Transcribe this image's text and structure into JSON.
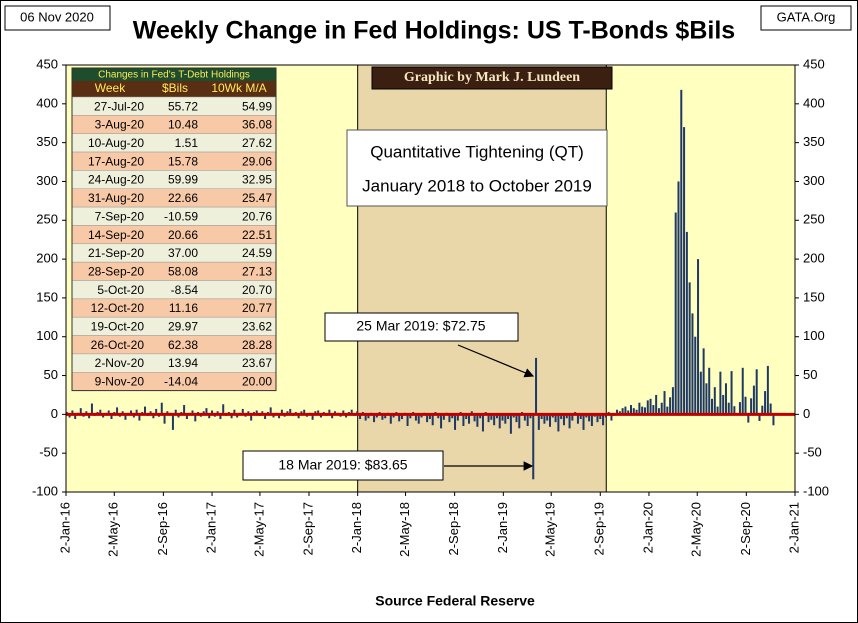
{
  "chart_data": {
    "type": "bar",
    "title": "Weekly Change in Fed Holdings:  US T-Bonds $Bils",
    "date_label": "06 Nov 2020",
    "source_tag": "GATA.Org",
    "credit": "Graphic by Mark J. Lundeen",
    "xlabel": "Source Federal Reserve",
    "color": "#1f3864",
    "background": "#ffffc0",
    "zero_line_color": "#c00000",
    "shaded": {
      "range": [
        "2018-01-02",
        "2019-09-17"
      ],
      "color": "#e9d6a9",
      "text": [
        "Quantitative Tightening (QT)",
        "January 2018 to October 2019"
      ]
    },
    "annotations": [
      "25 Mar 2019: $72.75",
      "18 Mar 2019: $83.65"
    ],
    "xlim": [
      "2016-01-02",
      "2021-01-02"
    ],
    "xticks": [
      {
        "value": "2016-01-02",
        "label": "2-Jan-16"
      },
      {
        "value": "2016-05-02",
        "label": "2-May-16"
      },
      {
        "value": "2016-09-02",
        "label": "2-Sep-16"
      },
      {
        "value": "2017-01-02",
        "label": "2-Jan-17"
      },
      {
        "value": "2017-05-02",
        "label": "2-May-17"
      },
      {
        "value": "2017-09-02",
        "label": "2-Sep-17"
      },
      {
        "value": "2018-01-02",
        "label": "2-Jan-18"
      },
      {
        "value": "2018-05-02",
        "label": "2-May-18"
      },
      {
        "value": "2018-09-02",
        "label": "2-Sep-18"
      },
      {
        "value": "2019-01-02",
        "label": "2-Jan-19"
      },
      {
        "value": "2019-05-02",
        "label": "2-May-19"
      },
      {
        "value": "2019-09-02",
        "label": "2-Sep-19"
      },
      {
        "value": "2020-01-02",
        "label": "2-Jan-20"
      },
      {
        "value": "2020-05-02",
        "label": "2-May-20"
      },
      {
        "value": "2020-09-02",
        "label": "2-Sep-20"
      },
      {
        "value": "2021-01-02",
        "label": "2-Jan-21"
      }
    ],
    "ylim": [
      -100,
      450
    ],
    "yticks": [
      -100,
      -50,
      0,
      50,
      100,
      150,
      200,
      250,
      300,
      350,
      400,
      450
    ],
    "x": [
      "2016-01-04",
      "2016-01-11",
      "2016-01-18",
      "2016-01-25",
      "2016-02-01",
      "2016-02-08",
      "2016-02-15",
      "2016-02-22",
      "2016-02-29",
      "2016-03-07",
      "2016-03-14",
      "2016-03-21",
      "2016-03-28",
      "2016-04-04",
      "2016-04-11",
      "2016-04-18",
      "2016-04-25",
      "2016-05-02",
      "2016-05-09",
      "2016-05-16",
      "2016-05-23",
      "2016-05-30",
      "2016-06-06",
      "2016-06-13",
      "2016-06-20",
      "2016-06-27",
      "2016-07-04",
      "2016-07-11",
      "2016-07-18",
      "2016-07-25",
      "2016-08-01",
      "2016-08-08",
      "2016-08-15",
      "2016-08-22",
      "2016-08-29",
      "2016-09-05",
      "2016-09-12",
      "2016-09-19",
      "2016-09-26",
      "2016-10-03",
      "2016-10-10",
      "2016-10-17",
      "2016-10-24",
      "2016-10-31",
      "2016-11-07",
      "2016-11-14",
      "2016-11-21",
      "2016-11-28",
      "2016-12-05",
      "2016-12-12",
      "2016-12-19",
      "2016-12-26",
      "2017-01-02",
      "2017-01-09",
      "2017-01-16",
      "2017-01-23",
      "2017-01-30",
      "2017-02-06",
      "2017-02-13",
      "2017-02-20",
      "2017-02-27",
      "2017-03-06",
      "2017-03-13",
      "2017-03-20",
      "2017-03-27",
      "2017-04-03",
      "2017-04-10",
      "2017-04-17",
      "2017-04-24",
      "2017-05-01",
      "2017-05-08",
      "2017-05-15",
      "2017-05-22",
      "2017-05-29",
      "2017-06-05",
      "2017-06-12",
      "2017-06-19",
      "2017-06-26",
      "2017-07-03",
      "2017-07-10",
      "2017-07-17",
      "2017-07-24",
      "2017-07-31",
      "2017-08-07",
      "2017-08-14",
      "2017-08-21",
      "2017-08-28",
      "2017-09-04",
      "2017-09-11",
      "2017-09-18",
      "2017-09-25",
      "2017-10-02",
      "2017-10-09",
      "2017-10-16",
      "2017-10-23",
      "2017-10-30",
      "2017-11-06",
      "2017-11-13",
      "2017-11-20",
      "2017-11-27",
      "2017-12-04",
      "2017-12-11",
      "2017-12-18",
      "2017-12-25",
      "2018-01-01",
      "2018-01-08",
      "2018-01-15",
      "2018-01-22",
      "2018-01-29",
      "2018-02-05",
      "2018-02-12",
      "2018-02-19",
      "2018-02-26",
      "2018-03-05",
      "2018-03-12",
      "2018-03-19",
      "2018-03-26",
      "2018-04-02",
      "2018-04-09",
      "2018-04-16",
      "2018-04-23",
      "2018-04-30",
      "2018-05-07",
      "2018-05-14",
      "2018-05-21",
      "2018-05-28",
      "2018-06-04",
      "2018-06-11",
      "2018-06-18",
      "2018-06-25",
      "2018-07-02",
      "2018-07-09",
      "2018-07-16",
      "2018-07-23",
      "2018-07-30",
      "2018-08-06",
      "2018-08-13",
      "2018-08-20",
      "2018-08-27",
      "2018-09-03",
      "2018-09-10",
      "2018-09-17",
      "2018-09-24",
      "2018-10-01",
      "2018-10-08",
      "2018-10-15",
      "2018-10-22",
      "2018-10-29",
      "2018-11-05",
      "2018-11-12",
      "2018-11-19",
      "2018-11-26",
      "2018-12-03",
      "2018-12-10",
      "2018-12-17",
      "2018-12-24",
      "2018-12-31",
      "2019-01-07",
      "2019-01-14",
      "2019-01-21",
      "2019-01-28",
      "2019-02-04",
      "2019-02-11",
      "2019-02-18",
      "2019-02-25",
      "2019-03-04",
      "2019-03-11",
      "2019-03-18",
      "2019-03-25",
      "2019-04-01",
      "2019-04-08",
      "2019-04-15",
      "2019-04-22",
      "2019-04-29",
      "2019-05-06",
      "2019-05-13",
      "2019-05-20",
      "2019-05-27",
      "2019-06-03",
      "2019-06-10",
      "2019-06-17",
      "2019-06-24",
      "2019-07-01",
      "2019-07-08",
      "2019-07-15",
      "2019-07-22",
      "2019-07-29",
      "2019-08-05",
      "2019-08-12",
      "2019-08-19",
      "2019-08-26",
      "2019-09-02",
      "2019-09-09",
      "2019-09-16",
      "2019-09-23",
      "2019-09-30",
      "2019-10-07",
      "2019-10-14",
      "2019-10-21",
      "2019-10-28",
      "2019-11-04",
      "2019-11-11",
      "2019-11-18",
      "2019-11-25",
      "2019-12-02",
      "2019-12-09",
      "2019-12-16",
      "2019-12-23",
      "2019-12-30",
      "2020-01-06",
      "2020-01-13",
      "2020-01-20",
      "2020-01-27",
      "2020-02-03",
      "2020-02-10",
      "2020-02-17",
      "2020-02-24",
      "2020-03-02",
      "2020-03-09",
      "2020-03-16",
      "2020-03-23",
      "2020-03-30",
      "2020-04-06",
      "2020-04-13",
      "2020-04-20",
      "2020-04-27",
      "2020-05-04",
      "2020-05-11",
      "2020-05-18",
      "2020-05-25",
      "2020-06-01",
      "2020-06-08",
      "2020-06-15",
      "2020-06-22",
      "2020-06-29",
      "2020-07-06",
      "2020-07-13",
      "2020-07-20",
      "2020-07-27",
      "2020-08-03",
      "2020-08-10",
      "2020-08-17",
      "2020-08-24",
      "2020-08-31",
      "2020-09-07",
      "2020-09-14",
      "2020-09-21",
      "2020-09-28",
      "2020-10-05",
      "2020-10-12",
      "2020-10-19",
      "2020-10-26",
      "2020-11-02",
      "2020-11-09"
    ],
    "values": [
      3,
      -4,
      5,
      -6,
      2,
      8,
      -3,
      4,
      -5,
      14,
      -2,
      3,
      6,
      -4,
      2,
      5,
      -6,
      3,
      9,
      -3,
      4,
      -7,
      2,
      5,
      -4,
      6,
      -8,
      3,
      10,
      -2,
      4,
      -5,
      7,
      -3,
      15,
      -12,
      4,
      2,
      -20,
      6,
      -4,
      3,
      12,
      -6,
      2,
      5,
      -9,
      3,
      -3,
      4,
      8,
      -5,
      5,
      -3,
      4,
      -6,
      13,
      -2,
      3,
      -5,
      6,
      -4,
      2,
      7,
      -3,
      4,
      -8,
      3,
      5,
      -2,
      4,
      -6,
      3,
      9,
      -4,
      2,
      -5,
      6,
      -3,
      4,
      7,
      -2,
      3,
      -5,
      4,
      6,
      -3,
      2,
      -7,
      4,
      5,
      -4,
      3,
      -2,
      6,
      -5,
      4,
      2,
      -3,
      5,
      -4,
      3,
      6,
      -2,
      4,
      -6,
      3,
      -8,
      -5,
      2,
      -10,
      -4,
      3,
      -7,
      -5,
      2,
      -12,
      -4,
      3,
      -9,
      -6,
      2,
      -15,
      -5,
      3,
      -8,
      -12,
      -4,
      2,
      -10,
      -6,
      -14,
      3,
      -5,
      -18,
      -7,
      2,
      -10,
      -5,
      -20,
      -8,
      3,
      -15,
      -6,
      -12,
      4,
      -9,
      -16,
      -5,
      -22,
      3,
      -10,
      -7,
      -14,
      -5,
      -18,
      -8,
      -12,
      -6,
      -25,
      -4,
      -10,
      -18,
      3,
      -8,
      -15,
      -5,
      -83.65,
      72.75,
      -20,
      -6,
      -12,
      -8,
      -16,
      -4,
      -10,
      -22,
      -6,
      -14,
      -5,
      -18,
      -8,
      3,
      -12,
      -6,
      -20,
      -4,
      -9,
      -15,
      -3,
      -10,
      -6,
      -14,
      -4,
      3,
      -8,
      -2,
      6,
      4,
      8,
      10,
      5,
      12,
      8,
      6,
      15,
      10,
      9,
      18,
      20,
      12,
      25,
      8,
      15,
      30,
      10,
      22,
      35,
      260,
      300,
      418,
      370,
      235,
      170,
      130,
      100,
      200,
      55,
      85,
      40,
      60,
      20,
      35,
      10,
      55,
      25,
      40,
      15,
      55.72,
      10.48,
      1.51,
      15.78,
      59.99,
      22.66,
      -10.59,
      20.66,
      37.0,
      58.08,
      -8.54,
      11.16,
      29.97,
      62.38,
      13.94,
      -14.04
    ],
    "table": {
      "title": "Changes in Fed's T-Debt Holdings",
      "columns": [
        "Week",
        "$Bils",
        "10Wk M/A"
      ],
      "rows": [
        [
          "27-Jul-20",
          "55.72",
          "54.99"
        ],
        [
          "3-Aug-20",
          "10.48",
          "36.08"
        ],
        [
          "10-Aug-20",
          "1.51",
          "27.62"
        ],
        [
          "17-Aug-20",
          "15.78",
          "29.06"
        ],
        [
          "24-Aug-20",
          "59.99",
          "32.95"
        ],
        [
          "31-Aug-20",
          "22.66",
          "25.47"
        ],
        [
          "7-Sep-20",
          "-10.59",
          "20.76"
        ],
        [
          "14-Sep-20",
          "20.66",
          "22.51"
        ],
        [
          "21-Sep-20",
          "37.00",
          "24.59"
        ],
        [
          "28-Sep-20",
          "58.08",
          "27.13"
        ],
        [
          "5-Oct-20",
          "-8.54",
          "20.70"
        ],
        [
          "12-Oct-20",
          "11.16",
          "20.77"
        ],
        [
          "19-Oct-20",
          "29.97",
          "23.62"
        ],
        [
          "26-Oct-20",
          "62.38",
          "28.28"
        ],
        [
          "2-Nov-20",
          "13.94",
          "23.67"
        ],
        [
          "9-Nov-20",
          "-14.04",
          "20.00"
        ]
      ]
    }
  }
}
